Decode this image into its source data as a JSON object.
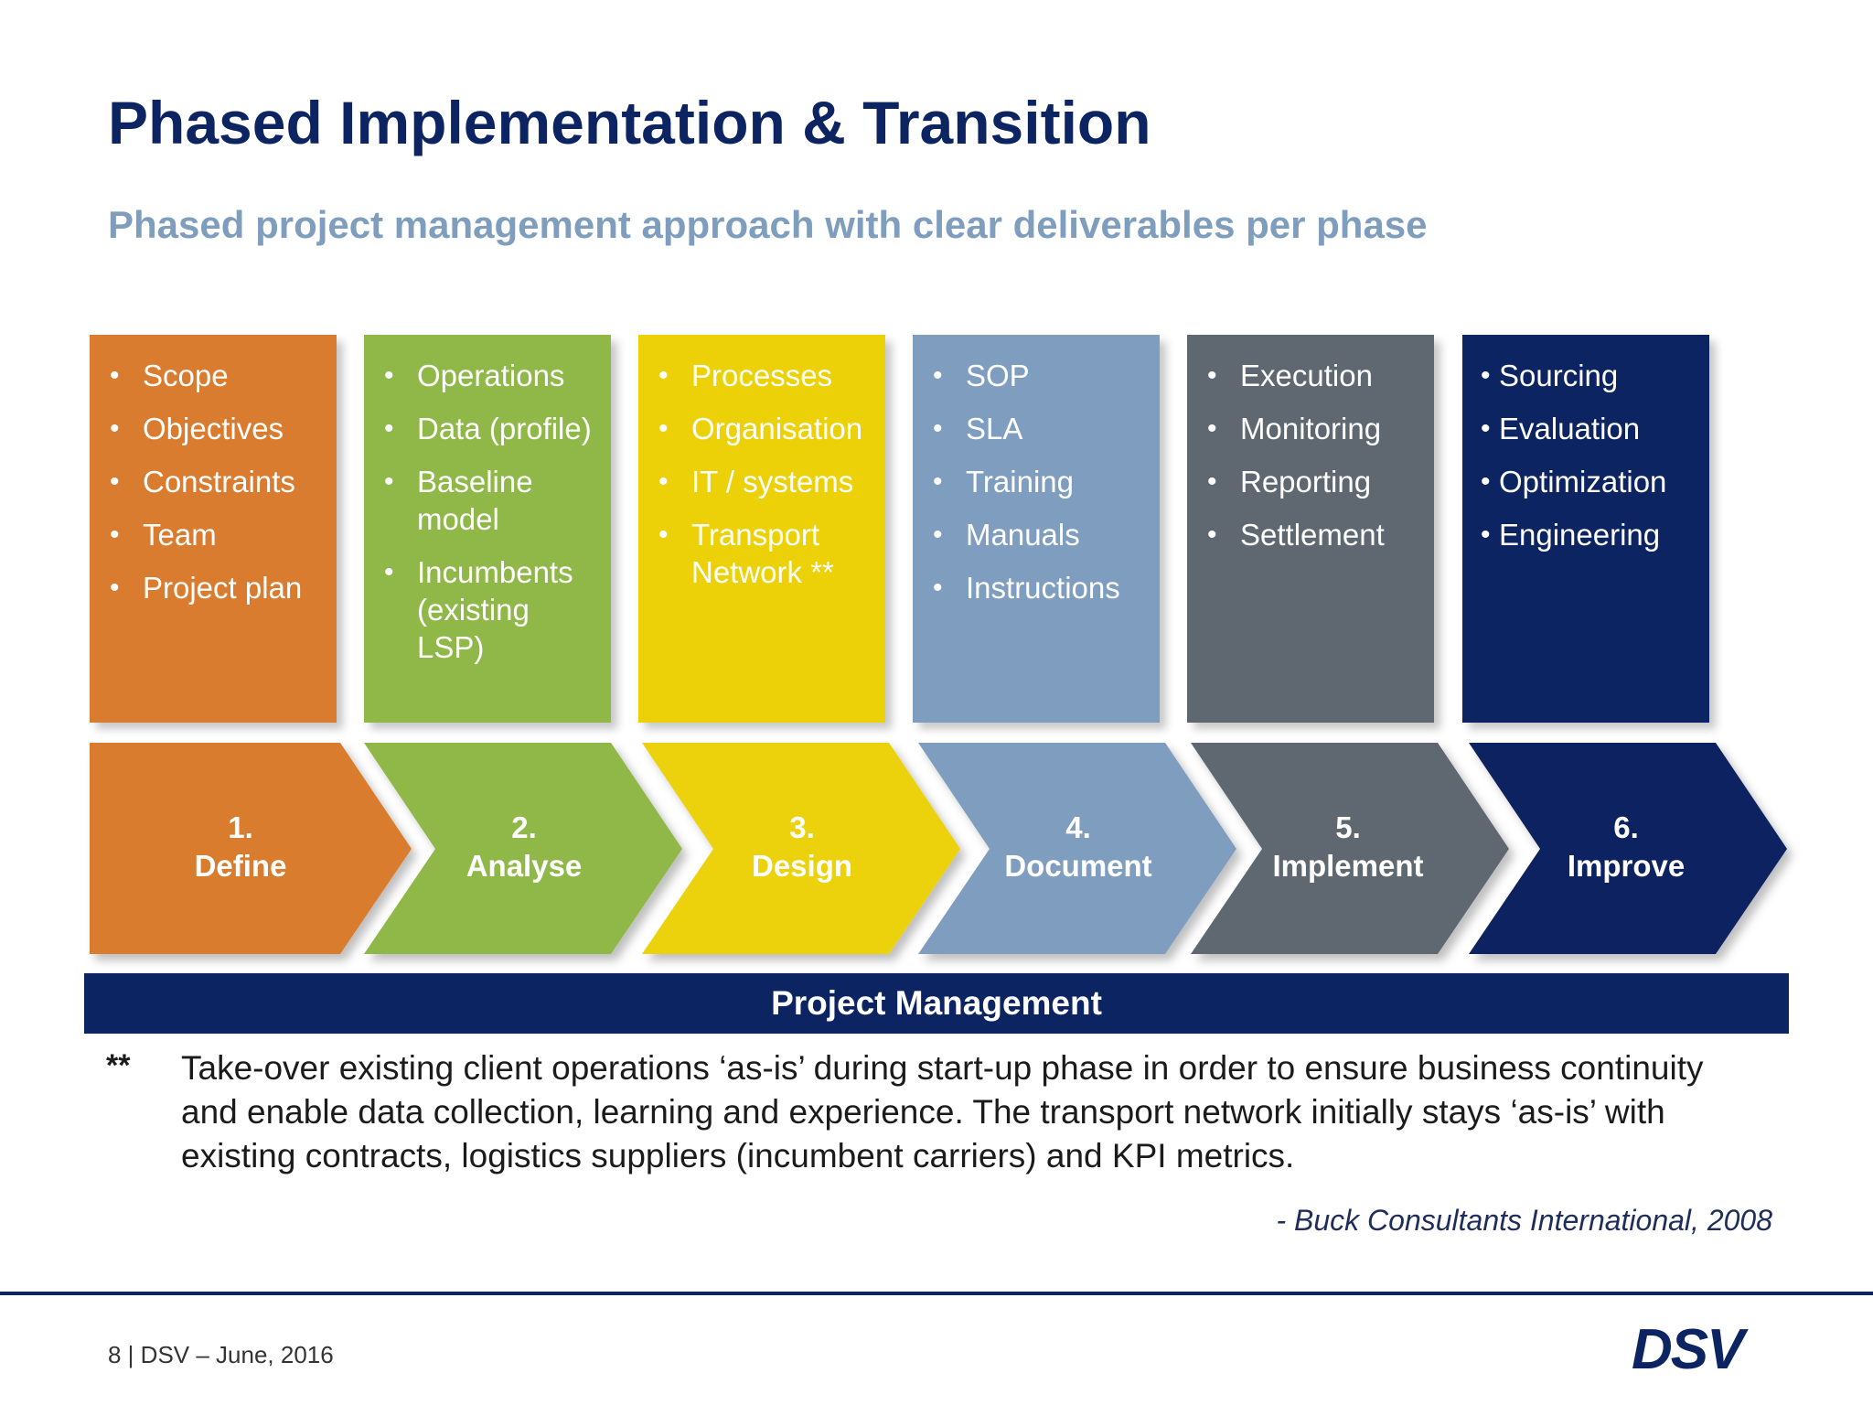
{
  "title": "Phased Implementation & Transition",
  "subtitle": "Phased project management approach with clear deliverables per phase",
  "bullet_char": "•",
  "colors": {
    "title": "#0c2461",
    "subtitle": "#7f9dbd",
    "define": "#d97c2f",
    "analyse": "#8fb849",
    "design": "#ecd108",
    "document": "#7f9ebf",
    "implement": "#5f6870",
    "improve": "#0c2461"
  },
  "phases": [
    {
      "number": "1.",
      "name": "Define",
      "items": [
        "Scope",
        "Objectives",
        "Constraints",
        "Team",
        "Project plan"
      ]
    },
    {
      "number": "2.",
      "name": "Analyse",
      "items": [
        "Operations",
        "Data (profile)",
        "Baseline model",
        "Incumbents (existing LSP)"
      ]
    },
    {
      "number": "3.",
      "name": "Design",
      "items": [
        "Processes",
        "Organisation",
        "IT / systems",
        "Transport Network **"
      ]
    },
    {
      "number": "4.",
      "name": "Document",
      "items": [
        "SOP",
        "SLA",
        "Training",
        "Manuals",
        "Instructions"
      ]
    },
    {
      "number": "5.",
      "name": "Implement",
      "items": [
        "Execution",
        "Monitoring",
        "Reporting",
        "Settlement"
      ]
    },
    {
      "number": "6.",
      "name": "Improve",
      "items": [
        "Sourcing",
        "Evaluation",
        "Optimization",
        "Engineering"
      ]
    }
  ],
  "project_management_label": "Project Management",
  "footnote": {
    "mark": "**",
    "text": "Take-over existing client operations ‘as-is’ during start-up phase in order to ensure business continuity and enable data collection, learning and experience. The transport network initially stays ‘as-is’ with existing contracts, logistics suppliers (incumbent carriers) and KPI metrics."
  },
  "citation": "- Buck Consultants International, 2008",
  "footer": "8 | DSV – June, 2016",
  "logo_text": "DSV"
}
